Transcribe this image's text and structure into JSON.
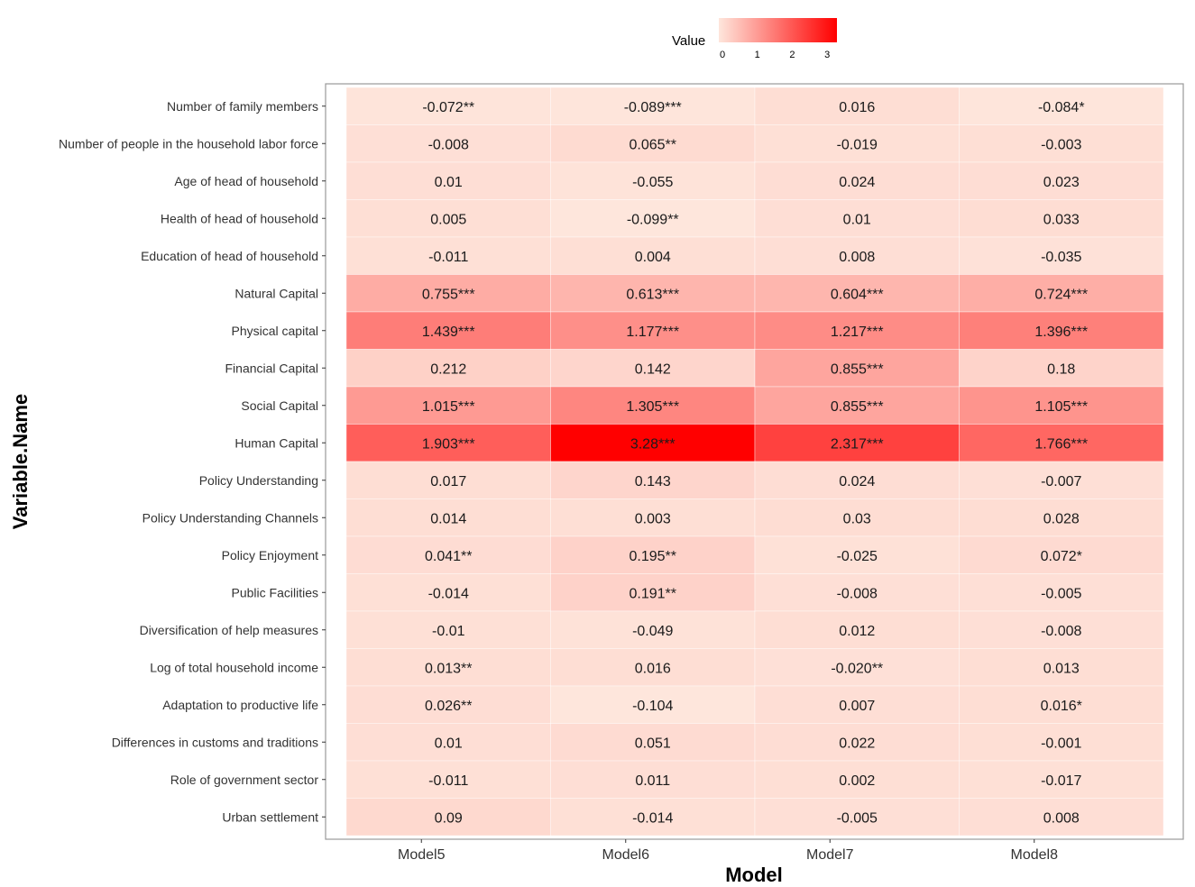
{
  "chart_data": {
    "type": "heatmap",
    "xlabel": "Model",
    "ylabel": "Variable.Name",
    "columns": [
      "Model5",
      "Model6",
      "Model7",
      "Model8"
    ],
    "rows": [
      "Number of family members",
      "Number of people in the household labor force",
      "Age of head of household",
      "Health of head of household",
      "Education of head of household",
      "Natural Capital",
      "Physical capital",
      "Financial Capital",
      "Social Capital",
      "Human Capital",
      "Policy Understanding",
      "Policy Understanding Channels",
      "Policy Enjoyment",
      "Public Facilities",
      "Diversification of help measures",
      "Log of total household income",
      "Adaptation to productive life",
      "Differences in customs and traditions",
      "Role of government sector",
      "Urban settlement"
    ],
    "values": [
      [
        -0.072,
        -0.089,
        0.016,
        -0.084
      ],
      [
        -0.008,
        0.065,
        -0.019,
        -0.003
      ],
      [
        0.01,
        -0.055,
        0.024,
        0.023
      ],
      [
        0.005,
        -0.099,
        0.01,
        0.033
      ],
      [
        -0.011,
        0.004,
        0.008,
        -0.035
      ],
      [
        0.755,
        0.613,
        0.604,
        0.724
      ],
      [
        1.439,
        1.177,
        1.217,
        1.396
      ],
      [
        0.212,
        0.142,
        0.855,
        0.18
      ],
      [
        1.015,
        1.305,
        0.855,
        1.105
      ],
      [
        1.903,
        3.28,
        2.317,
        1.766
      ],
      [
        0.017,
        0.143,
        0.024,
        -0.007
      ],
      [
        0.014,
        0.003,
        0.03,
        0.028
      ],
      [
        0.041,
        0.195,
        -0.025,
        0.072
      ],
      [
        -0.014,
        0.191,
        -0.008,
        -0.005
      ],
      [
        -0.01,
        -0.049,
        0.012,
        -0.008
      ],
      [
        0.013,
        0.016,
        -0.02,
        0.013
      ],
      [
        0.026,
        -0.104,
        0.007,
        0.016
      ],
      [
        0.01,
        0.051,
        0.022,
        -0.001
      ],
      [
        -0.011,
        0.011,
        0.002,
        -0.017
      ],
      [
        0.09,
        -0.014,
        -0.005,
        0.008
      ]
    ],
    "labels": [
      [
        "-0.072**",
        "-0.089***",
        "0.016",
        "-0.084*"
      ],
      [
        "-0.008",
        "0.065**",
        "-0.019",
        "-0.003"
      ],
      [
        "0.01",
        "-0.055",
        "0.024",
        "0.023"
      ],
      [
        "0.005",
        "-0.099**",
        "0.01",
        "0.033"
      ],
      [
        "-0.011",
        "0.004",
        "0.008",
        "-0.035"
      ],
      [
        "0.755***",
        "0.613***",
        "0.604***",
        "0.724***"
      ],
      [
        "1.439***",
        "1.177***",
        "1.217***",
        "1.396***"
      ],
      [
        "0.212",
        "0.142",
        "0.855***",
        "0.18"
      ],
      [
        "1.015***",
        "1.305***",
        "0.855***",
        "1.105***"
      ],
      [
        "1.903***",
        "3.28***",
        "2.317***",
        "1.766***"
      ],
      [
        "0.017",
        "0.143",
        "0.024",
        "-0.007"
      ],
      [
        "0.014",
        "0.003",
        "0.03",
        "0.028"
      ],
      [
        "0.041**",
        "0.195**",
        "-0.025",
        "0.072*"
      ],
      [
        "-0.014",
        "0.191**",
        "-0.008",
        "-0.005"
      ],
      [
        "-0.01",
        "-0.049",
        "0.012",
        "-0.008"
      ],
      [
        "0.013**",
        "0.016",
        "-0.020**",
        "0.013"
      ],
      [
        "0.026**",
        "-0.104",
        "0.007",
        "0.016*"
      ],
      [
        "0.01",
        "0.051",
        "0.022",
        "-0.001"
      ],
      [
        "-0.011",
        "0.011",
        "0.002",
        "-0.017"
      ],
      [
        "0.09",
        "-0.014",
        "-0.005",
        "0.008"
      ]
    ],
    "legend": {
      "title": "Value",
      "position": "top",
      "ticks": [
        "0",
        "1",
        "2",
        "3"
      ],
      "range": [
        -0.104,
        3.28
      ]
    },
    "colors": {
      "low": "#fee6dc",
      "high": "#ff0000",
      "panel_border": "#999999",
      "axis_text": "#333333"
    },
    "grid": false
  }
}
